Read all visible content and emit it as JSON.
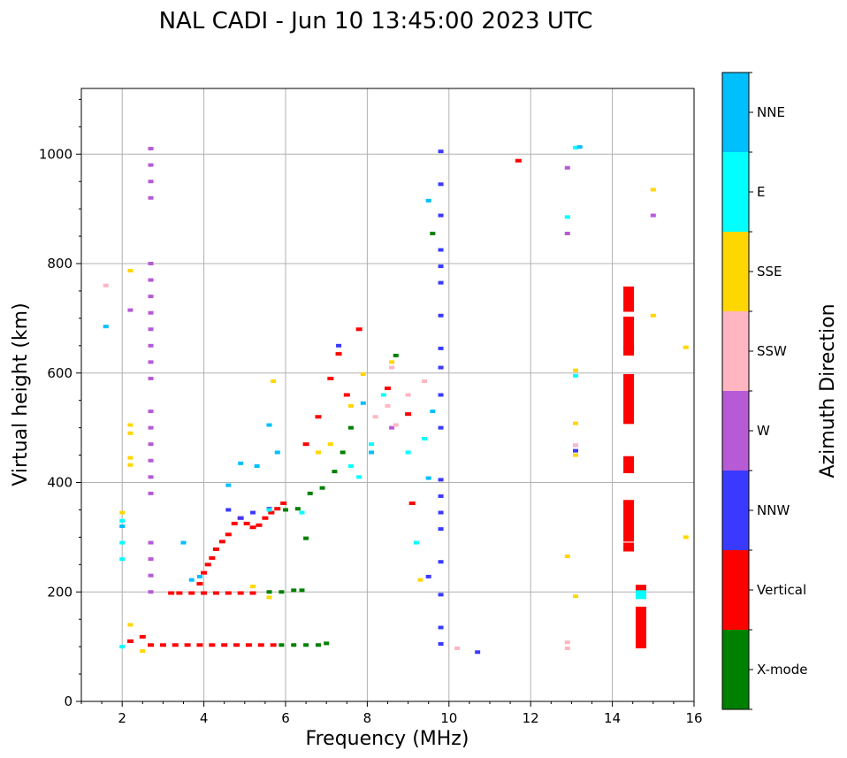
{
  "chart_data": {
    "type": "scatter",
    "title": "NAL CADI - Jun 10 13:45:00 2023 UTC",
    "xlabel": "Frequency (MHz)",
    "ylabel": "Virtual height (km)",
    "xlim": [
      1,
      16
    ],
    "ylim": [
      0,
      1120
    ],
    "x_ticks": [
      2,
      4,
      6,
      8,
      10,
      12,
      14,
      16
    ],
    "y_ticks": [
      0,
      200,
      400,
      600,
      800,
      1000
    ],
    "grid": true,
    "colorbar": {
      "label": "Azimuth Direction",
      "categories": [
        {
          "name": "X-mode",
          "color": "#008000"
        },
        {
          "name": "Vertical",
          "color": "#ff0000"
        },
        {
          "name": "NNW",
          "color": "#3a3aff"
        },
        {
          "name": "W",
          "color": "#b65ad6"
        },
        {
          "name": "SSW",
          "color": "#ffb6c1"
        },
        {
          "name": "SSE",
          "color": "#ffd700"
        },
        {
          "name": "E",
          "color": "#00ffff"
        },
        {
          "name": "NNE",
          "color": "#00bfff"
        }
      ]
    },
    "series": [
      {
        "name": "Vertical",
        "points": [
          [
            2.7,
            103
          ],
          [
            3.0,
            103
          ],
          [
            3.3,
            103
          ],
          [
            3.6,
            103
          ],
          [
            3.9,
            103
          ],
          [
            4.2,
            103
          ],
          [
            4.5,
            103
          ],
          [
            4.8,
            103
          ],
          [
            5.1,
            103
          ],
          [
            5.4,
            103
          ],
          [
            5.7,
            103
          ],
          [
            2.2,
            110
          ],
          [
            2.5,
            118
          ],
          [
            3.2,
            198
          ],
          [
            3.4,
            198
          ],
          [
            3.7,
            198
          ],
          [
            4.0,
            198
          ],
          [
            4.3,
            198
          ],
          [
            4.6,
            198
          ],
          [
            4.9,
            198
          ],
          [
            5.2,
            198
          ],
          [
            3.9,
            215
          ],
          [
            4.0,
            235
          ],
          [
            4.1,
            250
          ],
          [
            4.2,
            262
          ],
          [
            4.3,
            278
          ],
          [
            4.45,
            292
          ],
          [
            4.6,
            305
          ],
          [
            4.75,
            325
          ],
          [
            4.9,
            335
          ],
          [
            5.05,
            325
          ],
          [
            5.2,
            318
          ],
          [
            5.35,
            322
          ],
          [
            5.5,
            335
          ],
          [
            5.65,
            345
          ],
          [
            5.8,
            352
          ],
          [
            5.95,
            362
          ],
          [
            6.5,
            470
          ],
          [
            6.8,
            520
          ],
          [
            7.1,
            590
          ],
          [
            7.3,
            635
          ],
          [
            7.5,
            560
          ],
          [
            7.8,
            680
          ],
          [
            9.1,
            362
          ],
          [
            8.5,
            572
          ],
          [
            9.0,
            525
          ],
          [
            11.7,
            988
          ],
          [
            14.4,
            750
          ],
          [
            14.4,
            735
          ],
          [
            14.4,
            720
          ],
          [
            14.4,
            695
          ],
          [
            14.4,
            680
          ],
          [
            14.4,
            665
          ],
          [
            14.4,
            650
          ],
          [
            14.4,
            640
          ],
          [
            14.4,
            590
          ],
          [
            14.4,
            575
          ],
          [
            14.4,
            560
          ],
          [
            14.4,
            545
          ],
          [
            14.4,
            530
          ],
          [
            14.4,
            515
          ],
          [
            14.4,
            440
          ],
          [
            14.4,
            425
          ],
          [
            14.4,
            360
          ],
          [
            14.4,
            345
          ],
          [
            14.4,
            330
          ],
          [
            14.4,
            315
          ],
          [
            14.4,
            300
          ],
          [
            14.4,
            282
          ],
          [
            14.7,
            205
          ],
          [
            14.7,
            165
          ],
          [
            14.7,
            150
          ],
          [
            14.7,
            135
          ],
          [
            14.7,
            120
          ],
          [
            14.7,
            105
          ]
        ]
      },
      {
        "name": "X-mode",
        "points": [
          [
            5.9,
            103
          ],
          [
            6.2,
            103
          ],
          [
            6.5,
            103
          ],
          [
            6.8,
            103
          ],
          [
            7.0,
            106
          ],
          [
            5.6,
            200
          ],
          [
            5.9,
            200
          ],
          [
            6.2,
            203
          ],
          [
            6.4,
            203
          ],
          [
            6.0,
            350
          ],
          [
            6.3,
            352
          ],
          [
            6.5,
            298
          ],
          [
            6.6,
            380
          ],
          [
            6.9,
            390
          ],
          [
            7.2,
            420
          ],
          [
            7.4,
            455
          ],
          [
            7.6,
            500
          ],
          [
            8.7,
            632
          ],
          [
            9.6,
            855
          ]
        ]
      },
      {
        "name": "NNW",
        "points": [
          [
            4.9,
            335
          ],
          [
            5.2,
            345
          ],
          [
            5.6,
            352
          ],
          [
            4.6,
            350
          ],
          [
            9.8,
            1005
          ],
          [
            9.8,
            945
          ],
          [
            9.8,
            888
          ],
          [
            9.8,
            825
          ],
          [
            9.8,
            795
          ],
          [
            9.8,
            765
          ],
          [
            9.8,
            705
          ],
          [
            9.8,
            645
          ],
          [
            9.8,
            610
          ],
          [
            9.8,
            560
          ],
          [
            9.8,
            500
          ],
          [
            9.8,
            405
          ],
          [
            9.8,
            375
          ],
          [
            9.8,
            345
          ],
          [
            9.8,
            315
          ],
          [
            9.8,
            255
          ],
          [
            9.8,
            195
          ],
          [
            9.8,
            135
          ],
          [
            9.8,
            105
          ],
          [
            10.7,
            90
          ],
          [
            9.5,
            228
          ],
          [
            13.1,
            458
          ],
          [
            7.3,
            650
          ]
        ]
      },
      {
        "name": "W",
        "points": [
          [
            2.7,
            1010
          ],
          [
            2.7,
            980
          ],
          [
            2.7,
            950
          ],
          [
            2.7,
            920
          ],
          [
            2.7,
            800
          ],
          [
            2.7,
            770
          ],
          [
            2.7,
            740
          ],
          [
            2.7,
            710
          ],
          [
            2.7,
            680
          ],
          [
            2.7,
            650
          ],
          [
            2.7,
            620
          ],
          [
            2.7,
            590
          ],
          [
            2.7,
            530
          ],
          [
            2.7,
            500
          ],
          [
            2.7,
            470
          ],
          [
            2.7,
            440
          ],
          [
            2.7,
            410
          ],
          [
            2.7,
            380
          ],
          [
            2.7,
            290
          ],
          [
            2.7,
            260
          ],
          [
            2.7,
            230
          ],
          [
            2.7,
            200
          ],
          [
            2.2,
            715
          ],
          [
            12.9,
            975
          ],
          [
            12.9,
            855
          ],
          [
            15.0,
            888
          ],
          [
            13.1,
            468
          ],
          [
            8.6,
            500
          ]
        ]
      },
      {
        "name": "SSW",
        "points": [
          [
            1.6,
            760
          ],
          [
            8.2,
            520
          ],
          [
            8.5,
            540
          ],
          [
            8.7,
            505
          ],
          [
            9.0,
            560
          ],
          [
            9.4,
            585
          ],
          [
            8.6,
            610
          ],
          [
            12.9,
            108
          ],
          [
            12.9,
            97
          ],
          [
            10.2,
            97
          ],
          [
            13.1,
            468
          ]
        ]
      },
      {
        "name": "SSE",
        "points": [
          [
            2.2,
            787
          ],
          [
            2.2,
            505
          ],
          [
            2.2,
            490
          ],
          [
            2.2,
            445
          ],
          [
            2.2,
            432
          ],
          [
            2.0,
            345
          ],
          [
            2.2,
            140
          ],
          [
            2.5,
            92
          ],
          [
            5.7,
            585
          ],
          [
            6.8,
            455
          ],
          [
            7.1,
            470
          ],
          [
            7.6,
            540
          ],
          [
            7.9,
            598
          ],
          [
            8.6,
            620
          ],
          [
            9.3,
            222
          ],
          [
            13.1,
            605
          ],
          [
            13.1,
            508
          ],
          [
            13.1,
            450
          ],
          [
            12.9,
            265
          ],
          [
            13.1,
            192
          ],
          [
            15.0,
            935
          ],
          [
            15.0,
            705
          ],
          [
            15.8,
            647
          ],
          [
            15.8,
            300
          ],
          [
            5.2,
            210
          ],
          [
            5.6,
            190
          ]
        ]
      },
      {
        "name": "E",
        "points": [
          [
            2.0,
            330
          ],
          [
            2.0,
            290
          ],
          [
            2.0,
            260
          ],
          [
            2.0,
            100
          ],
          [
            5.6,
            350
          ],
          [
            6.4,
            345
          ],
          [
            7.6,
            430
          ],
          [
            7.8,
            410
          ],
          [
            8.1,
            470
          ],
          [
            8.4,
            560
          ],
          [
            9.0,
            455
          ],
          [
            9.4,
            480
          ],
          [
            9.2,
            290
          ],
          [
            13.1,
            1012
          ],
          [
            12.9,
            885
          ],
          [
            13.1,
            595
          ],
          [
            14.7,
            195
          ]
        ]
      },
      {
        "name": "NNE",
        "points": [
          [
            1.6,
            685
          ],
          [
            2.0,
            320
          ],
          [
            3.5,
            290
          ],
          [
            3.7,
            222
          ],
          [
            3.9,
            228
          ],
          [
            4.6,
            395
          ],
          [
            4.9,
            435
          ],
          [
            5.3,
            430
          ],
          [
            5.6,
            505
          ],
          [
            5.8,
            455
          ],
          [
            7.9,
            545
          ],
          [
            8.1,
            455
          ],
          [
            9.5,
            408
          ],
          [
            9.5,
            915
          ],
          [
            9.6,
            530
          ],
          [
            13.2,
            1013
          ]
        ]
      }
    ]
  }
}
